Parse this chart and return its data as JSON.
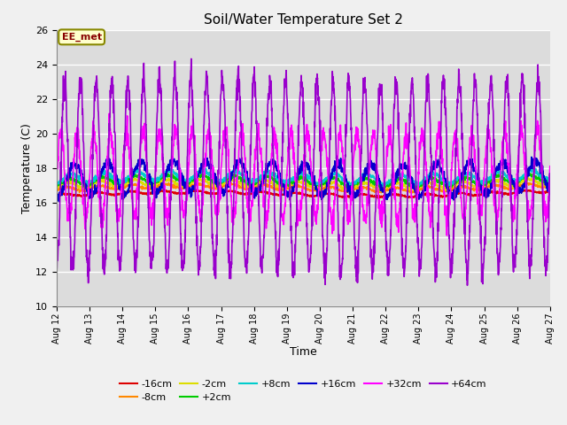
{
  "title": "Soil/Water Temperature Set 2",
  "xlabel": "Time",
  "ylabel": "Temperature (C)",
  "ylim": [
    10,
    26
  ],
  "background_color": "#dcdcdc",
  "grid_color": "#ffffff",
  "annotation_text": "EE_met",
  "annotation_bg": "#ffffcc",
  "annotation_border": "#888800",
  "annotation_text_color": "#880000",
  "series_order": [
    "-16cm",
    "-8cm",
    "-2cm",
    "+2cm",
    "+8cm",
    "+16cm",
    "+32cm",
    "+64cm"
  ],
  "series": {
    "-16cm": {
      "color": "#dd0000",
      "lw": 1.2,
      "base": 16.4,
      "amp": 0.08,
      "period": 1.0,
      "phase": 0.0,
      "noise": 0.03
    },
    "-8cm": {
      "color": "#ff8800",
      "lw": 1.2,
      "base": 16.75,
      "amp": 0.12,
      "period": 1.0,
      "phase": 0.05,
      "noise": 0.04
    },
    "-2cm": {
      "color": "#dddd00",
      "lw": 1.2,
      "base": 16.95,
      "amp": 0.18,
      "period": 1.0,
      "phase": 0.1,
      "noise": 0.05
    },
    "+2cm": {
      "color": "#00cc00",
      "lw": 1.2,
      "base": 17.15,
      "amp": 0.22,
      "period": 1.0,
      "phase": 0.15,
      "noise": 0.06
    },
    "+8cm": {
      "color": "#00cccc",
      "lw": 1.2,
      "base": 17.35,
      "amp": 0.28,
      "period": 1.0,
      "phase": 0.2,
      "noise": 0.07
    },
    "+16cm": {
      "color": "#0000cc",
      "lw": 1.2,
      "base": 17.3,
      "amp": 0.9,
      "period": 1.0,
      "phase": 0.3,
      "noise": 0.15
    },
    "+32cm": {
      "color": "#ff00ff",
      "lw": 1.2,
      "base": 17.5,
      "amp": 2.5,
      "period": 0.5,
      "phase": 0.0,
      "noise": 0.3
    },
    "+64cm": {
      "color": "#9900cc",
      "lw": 1.2,
      "base": 17.5,
      "amp": 5.5,
      "period": 0.48,
      "phase": 0.25,
      "noise": 0.4
    }
  },
  "tick_labels": [
    "Aug 12",
    "Aug 13",
    "Aug 14",
    "Aug 15",
    "Aug 16",
    "Aug 17",
    "Aug 18",
    "Aug 19",
    "Aug 20",
    "Aug 21",
    "Aug 22",
    "Aug 23",
    "Aug 24",
    "Aug 25",
    "Aug 26",
    "Aug 27"
  ],
  "legend_row1": [
    "-16cm",
    "-8cm",
    "-2cm",
    "+2cm",
    "+8cm",
    "+16cm"
  ],
  "legend_row2": [
    "+32cm",
    "+64cm"
  ],
  "legend_colors": {
    "-16cm": "#dd0000",
    "-8cm": "#ff8800",
    "-2cm": "#dddd00",
    "+2cm": "#00cc00",
    "+8cm": "#00cccc",
    "+16cm": "#0000cc",
    "+32cm": "#ff00ff",
    "+64cm": "#9900cc"
  }
}
